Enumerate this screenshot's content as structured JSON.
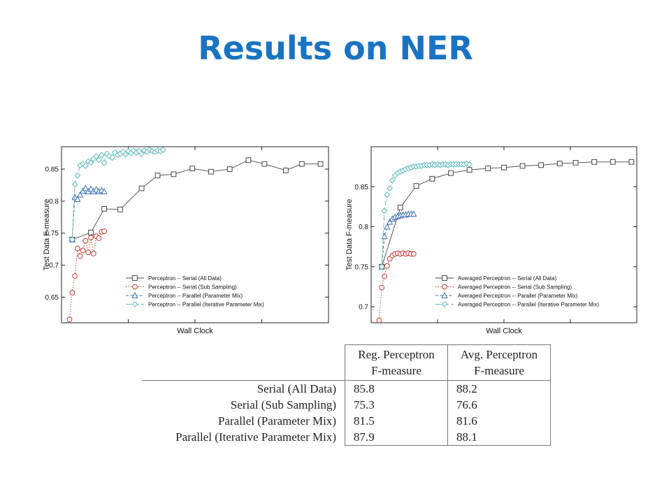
{
  "slide": {
    "title": "Results on NER"
  },
  "colors": {
    "title": "#1a73c2",
    "serial_all": "#444444",
    "serial_sub": "#c0392b",
    "parallel_mix": "#3a6fb5",
    "parallel_iter": "#5fb8bb"
  },
  "chart_data": [
    {
      "type": "line",
      "title": "",
      "xlabel": "Wall Clock",
      "ylabel": "Test Data F-measure",
      "ylim": [
        0.61,
        0.885
      ],
      "xlim": [
        0,
        100
      ],
      "yticks": [
        0.65,
        0.7,
        0.75,
        0.8,
        0.85
      ],
      "ytick_labels": [
        "0.65",
        "0.7",
        "0.75",
        "0.8",
        "0.85"
      ],
      "grid": false,
      "legend_position": "bottom-right",
      "series": [
        {
          "name": "Perceptron -- Serial (All Data)",
          "marker": "square",
          "dash": "solid",
          "color": "#444444",
          "x": [
            4,
            11,
            16,
            22,
            30,
            36,
            42,
            49,
            56,
            63,
            70,
            76,
            84,
            90,
            97
          ],
          "y": [
            0.74,
            0.751,
            0.788,
            0.787,
            0.82,
            0.84,
            0.842,
            0.851,
            0.846,
            0.85,
            0.864,
            0.858,
            0.848,
            0.858,
            0.858
          ]
        },
        {
          "name": "Perceptron -- Serial (Sub Sampling)",
          "marker": "circle",
          "dash": "dotted",
          "color": "#c0392b",
          "x": [
            3,
            4,
            5,
            6,
            7,
            8,
            9,
            10,
            11,
            12,
            13,
            14,
            15,
            16
          ],
          "y": [
            0.615,
            0.657,
            0.683,
            0.726,
            0.714,
            0.723,
            0.738,
            0.72,
            0.743,
            0.718,
            0.745,
            0.742,
            0.752,
            0.753
          ]
        },
        {
          "name": "Perceptron -- Parallel (Parameter Mix)",
          "marker": "triangle",
          "dash": "dashed",
          "color": "#3a6fb5",
          "x": [
            4,
            5,
            6,
            7,
            8,
            9,
            10,
            11,
            12,
            13,
            14,
            15,
            16
          ],
          "y": [
            0.74,
            0.806,
            0.803,
            0.81,
            0.816,
            0.82,
            0.815,
            0.819,
            0.815,
            0.818,
            0.815,
            0.817,
            0.815
          ]
        },
        {
          "name": "Perceptron -- Parallel (Iterative Parameter Mix)",
          "marker": "diamond",
          "dash": "longdash",
          "color": "#5fb8bb",
          "x": [
            4,
            5,
            6,
            7,
            8,
            9,
            10,
            11,
            12,
            13,
            14,
            15,
            16,
            17,
            18,
            19,
            20,
            21,
            22,
            23,
            24,
            25,
            26,
            27,
            28,
            29,
            30,
            31,
            32,
            33,
            34,
            35,
            36,
            37,
            38
          ],
          "y": [
            0.74,
            0.826,
            0.84,
            0.856,
            0.858,
            0.855,
            0.862,
            0.86,
            0.866,
            0.87,
            0.864,
            0.872,
            0.86,
            0.874,
            0.87,
            0.868,
            0.876,
            0.872,
            0.874,
            0.877,
            0.873,
            0.878,
            0.875,
            0.879,
            0.876,
            0.878,
            0.874,
            0.879,
            0.877,
            0.88,
            0.878,
            0.877,
            0.879,
            0.878,
            0.88
          ]
        }
      ]
    },
    {
      "type": "line",
      "title": "",
      "xlabel": "Wall Clock",
      "ylabel": "Test Data F-measure",
      "ylim": [
        0.68,
        0.9
      ],
      "xlim": [
        0,
        100
      ],
      "yticks": [
        0.7,
        0.75,
        0.8,
        0.85
      ],
      "ytick_labels": [
        "0.7",
        "0.75",
        "0.8",
        "0.85"
      ],
      "grid": false,
      "legend_position": "bottom-right",
      "series": [
        {
          "name": "Averaged Perceptron -- Serial (All Data)",
          "marker": "square",
          "dash": "solid",
          "color": "#444444",
          "x": [
            4,
            11,
            17,
            23,
            30,
            37,
            44,
            50,
            57,
            64,
            71,
            77,
            84,
            91,
            98
          ],
          "y": [
            0.75,
            0.824,
            0.851,
            0.86,
            0.867,
            0.871,
            0.873,
            0.874,
            0.876,
            0.877,
            0.879,
            0.88,
            0.881,
            0.881,
            0.881
          ]
        },
        {
          "name": "Averaged Perceptron -- Serial (Sub Sampling)",
          "marker": "circle",
          "dash": "dotted",
          "color": "#c0392b",
          "x": [
            3,
            4,
            5,
            6,
            7,
            8,
            9,
            10,
            11,
            12,
            13,
            14,
            15,
            16
          ],
          "y": [
            0.683,
            0.724,
            0.738,
            0.751,
            0.76,
            0.764,
            0.766,
            0.767,
            0.766,
            0.767,
            0.766,
            0.767,
            0.766,
            0.766
          ]
        },
        {
          "name": "Averaged Perceptron -- Parallel (Parameter Mix)",
          "marker": "triangle",
          "dash": "dashed",
          "color": "#3a6fb5",
          "x": [
            4,
            5,
            6,
            7,
            8,
            9,
            10,
            11,
            12,
            13,
            14,
            15,
            16
          ],
          "y": [
            0.75,
            0.788,
            0.8,
            0.806,
            0.81,
            0.812,
            0.813,
            0.814,
            0.815,
            0.815,
            0.816,
            0.816,
            0.816
          ]
        },
        {
          "name": "Averaged Perceptron -- Parallel (Iterative Parameter Mix)",
          "marker": "diamond",
          "dash": "longdash",
          "color": "#5fb8bb",
          "x": [
            4,
            5,
            6,
            7,
            8,
            9,
            10,
            11,
            12,
            13,
            14,
            15,
            16,
            17,
            18,
            19,
            20,
            21,
            22,
            23,
            24,
            25,
            26,
            27,
            28,
            29,
            30,
            31,
            32,
            33,
            34,
            35,
            36,
            37
          ],
          "y": [
            0.75,
            0.82,
            0.84,
            0.848,
            0.858,
            0.864,
            0.867,
            0.869,
            0.87,
            0.872,
            0.873,
            0.874,
            0.875,
            0.875,
            0.876,
            0.876,
            0.877,
            0.877,
            0.877,
            0.878,
            0.877,
            0.878,
            0.877,
            0.878,
            0.878,
            0.877,
            0.878,
            0.878,
            0.878,
            0.878,
            0.878,
            0.878,
            0.879,
            0.878
          ]
        }
      ]
    }
  ],
  "table": {
    "headers": [
      "",
      "Reg. Perceptron F-measure",
      "Avg. Perceptron F-measure"
    ],
    "header_lines": [
      [
        "Reg. Perceptron",
        "F-measure"
      ],
      [
        "Avg. Perceptron",
        "F-measure"
      ]
    ],
    "rows": [
      {
        "label": "Serial (All Data)",
        "reg": "85.8",
        "avg": "88.2"
      },
      {
        "label": "Serial (Sub Sampling)",
        "reg": "75.3",
        "avg": "76.6"
      },
      {
        "label": "Parallel (Parameter Mix)",
        "reg": "81.5",
        "avg": "81.6"
      },
      {
        "label": "Parallel (Iterative Parameter Mix)",
        "reg": "87.9",
        "avg": "88.1"
      }
    ]
  }
}
